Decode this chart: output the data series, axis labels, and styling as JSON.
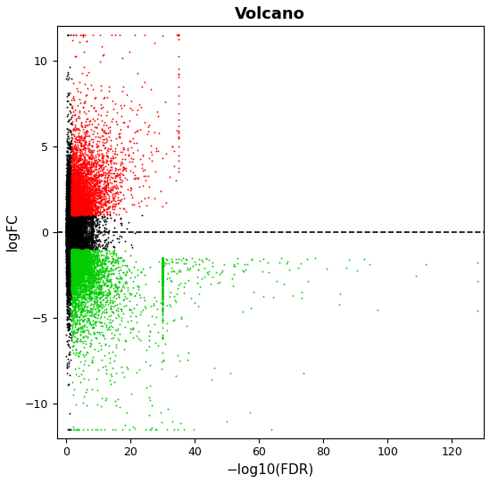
{
  "title": "Volcano",
  "xlabel": "−log10(FDR)",
  "ylabel": "logFC",
  "xlim": [
    -3,
    130
  ],
  "ylim": [
    -12,
    12
  ],
  "xticks": [
    0,
    20,
    40,
    60,
    80,
    100,
    120
  ],
  "yticks": [
    -10,
    -5,
    0,
    5,
    10
  ],
  "hline_y": 0,
  "dot_size": 1.8,
  "color_up": "#FF0000",
  "color_down": "#00CC00",
  "color_ns": "#000000",
  "background_color": "#FFFFFF",
  "seed": 42,
  "figsize": [
    5.49,
    5.41
  ],
  "dpi": 100
}
